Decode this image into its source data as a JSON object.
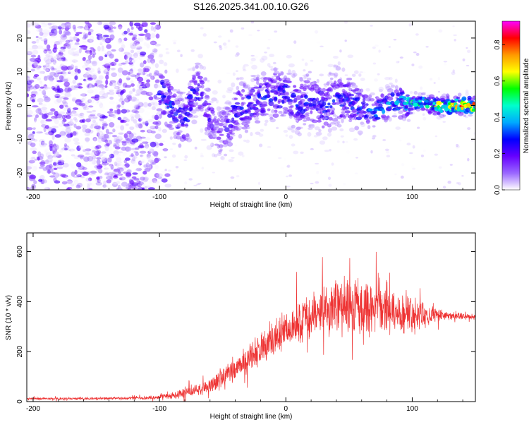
{
  "title": "S126.2025.341.00.10.G26",
  "chart_data": [
    {
      "type": "heatmap",
      "name": "spectrogram",
      "xlabel": "Height of straight line (km)",
      "ylabel": "Frequency (Hz)",
      "xlim": [
        -205,
        150
      ],
      "ylim": [
        -25,
        25
      ],
      "xticks": [
        -200,
        -100,
        0,
        100
      ],
      "yticks": [
        -20,
        -10,
        0,
        10,
        20
      ],
      "colorbar": {
        "label": "Normalized spectral amplitude",
        "range": [
          0.0,
          0.93
        ],
        "ticks": [
          0.0,
          0.2,
          0.4,
          0.6,
          0.8
        ],
        "colormap": [
          "#ffffff",
          "#9966ff",
          "#6600ff",
          "#0000ff",
          "#00aaff",
          "#00ffcc",
          "#00ff00",
          "#ffff00",
          "#ff9900",
          "#ff0000",
          "#ff00ff"
        ]
      },
      "ridge": {
        "x": [
          -98,
          -92,
          -87,
          -80,
          -72,
          -65,
          -60,
          -52,
          -45,
          -40,
          -30,
          -20,
          -10,
          0,
          10,
          20,
          30,
          40,
          50,
          60,
          70,
          80,
          90,
          100,
          110,
          120,
          130,
          140,
          150
        ],
        "y": [
          4,
          0,
          -3,
          -5,
          5,
          3,
          -4,
          -8,
          -6,
          -1,
          0,
          2,
          3,
          3,
          0,
          2,
          -1,
          3,
          1,
          0,
          -2,
          0,
          1,
          1,
          0.5,
          0,
          0,
          0,
          0
        ],
        "amplitude": [
          0.3,
          0.35,
          0.3,
          0.3,
          0.32,
          0.25,
          0.25,
          0.2,
          0.25,
          0.28,
          0.3,
          0.3,
          0.3,
          0.32,
          0.3,
          0.3,
          0.3,
          0.32,
          0.32,
          0.35,
          0.38,
          0.4,
          0.42,
          0.5,
          0.6,
          0.7,
          0.8,
          0.85,
          0.9
        ]
      }
    },
    {
      "type": "line",
      "name": "snr",
      "xlabel": "Height of straight line (km)",
      "ylabel": "SNR (10 * v/v)",
      "xlim": [
        -205,
        150
      ],
      "ylim": [
        0,
        675
      ],
      "xticks": [
        -200,
        -100,
        0,
        100
      ],
      "yticks": [
        0,
        200,
        400,
        600
      ],
      "series": [
        {
          "name": "SNR",
          "color": "#ee3333",
          "envelope": {
            "x": [
              -205,
              -150,
              -110,
              -90,
              -80,
              -70,
              -60,
              -50,
              -40,
              -30,
              -20,
              -10,
              0,
              10,
              20,
              30,
              40,
              50,
              60,
              70,
              80,
              90,
              100,
              110,
              120,
              130,
              140,
              150
            ],
            "mean": [
              12,
              12,
              14,
              25,
              35,
              50,
              60,
              100,
              130,
              170,
              210,
              250,
              290,
              320,
              350,
              370,
              380,
              380,
              375,
              365,
              360,
              355,
              350,
              345,
              345,
              345,
              340,
              340
            ],
            "spread": [
              6,
              6,
              8,
              15,
              25,
              30,
              35,
              50,
              60,
              70,
              80,
              90,
              95,
              100,
              110,
              120,
              130,
              140,
              130,
              120,
              110,
              100,
              90,
              60,
              30,
              20,
              15,
              12
            ]
          }
        }
      ]
    }
  ]
}
